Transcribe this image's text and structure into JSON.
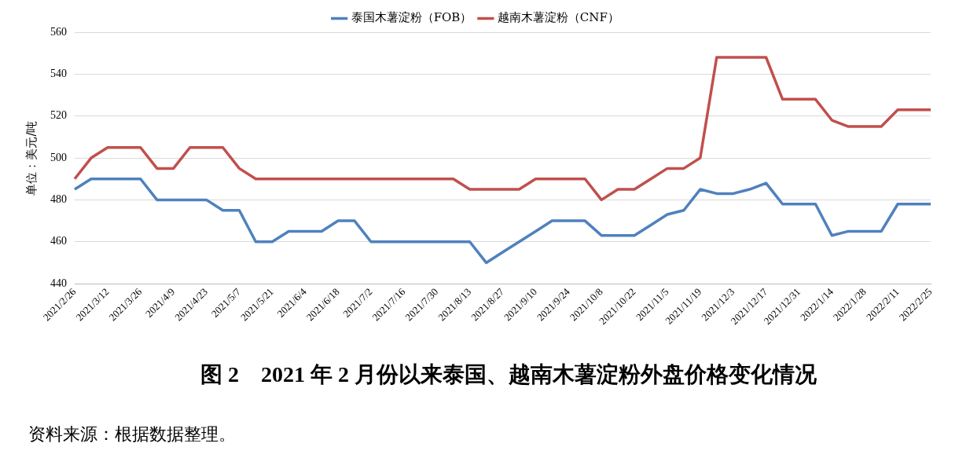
{
  "chart_data": {
    "type": "line",
    "title": "图 2　2021 年 2 月份以来泰国、越南木薯淀粉外盘价格变化情况",
    "ylabel": "单位：美元/吨",
    "annotations": [
      "资料来源：根据数据整理。"
    ],
    "categories": [
      "2021/2/26",
      null,
      "2021/3/12",
      null,
      "2021/3/26",
      null,
      "2021/4/9",
      null,
      "2021/4/23",
      null,
      "2021/5/7",
      null,
      "2021/5/21",
      null,
      "2021/6/4",
      null,
      "2021/6/18",
      null,
      "2021/7/2",
      null,
      "2021/7/16",
      null,
      "2021/7/30",
      null,
      "2021/8/13",
      null,
      "2021/8/27",
      null,
      "2021/9/10",
      null,
      "2021/9/24",
      null,
      "2021/10/8",
      null,
      "2021/10/22",
      null,
      "2021/11/5",
      null,
      "2021/11/19",
      null,
      "2021/12/3",
      null,
      "2021/12/17",
      null,
      "2021/12/31",
      null,
      "2022/1/14",
      null,
      "2022/1/28",
      null,
      "2022/2/11",
      null,
      "2022/2/25"
    ],
    "series": [
      {
        "name": "泰国木薯淀粉（FOB）",
        "color": "#4f81bd",
        "values": [
          485,
          490,
          490,
          490,
          490,
          480,
          480,
          480,
          480,
          475,
          475,
          460,
          460,
          465,
          465,
          465,
          470,
          470,
          460,
          460,
          460,
          460,
          460,
          460,
          460,
          450,
          455,
          460,
          465,
          470,
          470,
          470,
          463,
          463,
          463,
          468,
          473,
          475,
          485,
          483,
          483,
          485,
          488,
          478,
          478,
          478,
          463,
          465,
          465,
          465,
          478,
          478,
          478
        ]
      },
      {
        "name": "越南木薯淀粉（CNF）",
        "color": "#c0504d",
        "values": [
          490,
          500,
          505,
          505,
          505,
          495,
          495,
          505,
          505,
          505,
          495,
          490,
          490,
          490,
          490,
          490,
          490,
          490,
          490,
          490,
          490,
          490,
          490,
          490,
          485,
          485,
          485,
          485,
          490,
          490,
          490,
          490,
          480,
          485,
          485,
          490,
          495,
          495,
          500,
          548,
          548,
          548,
          548,
          528,
          528,
          528,
          518,
          515,
          515,
          515,
          523,
          523,
          523
        ]
      }
    ],
    "ylim": [
      440,
      560
    ],
    "yticks": [
      440,
      460,
      480,
      500,
      520,
      540,
      560
    ],
    "grid": "y",
    "legend": "top",
    "marker": "none",
    "line_style": "solid"
  }
}
